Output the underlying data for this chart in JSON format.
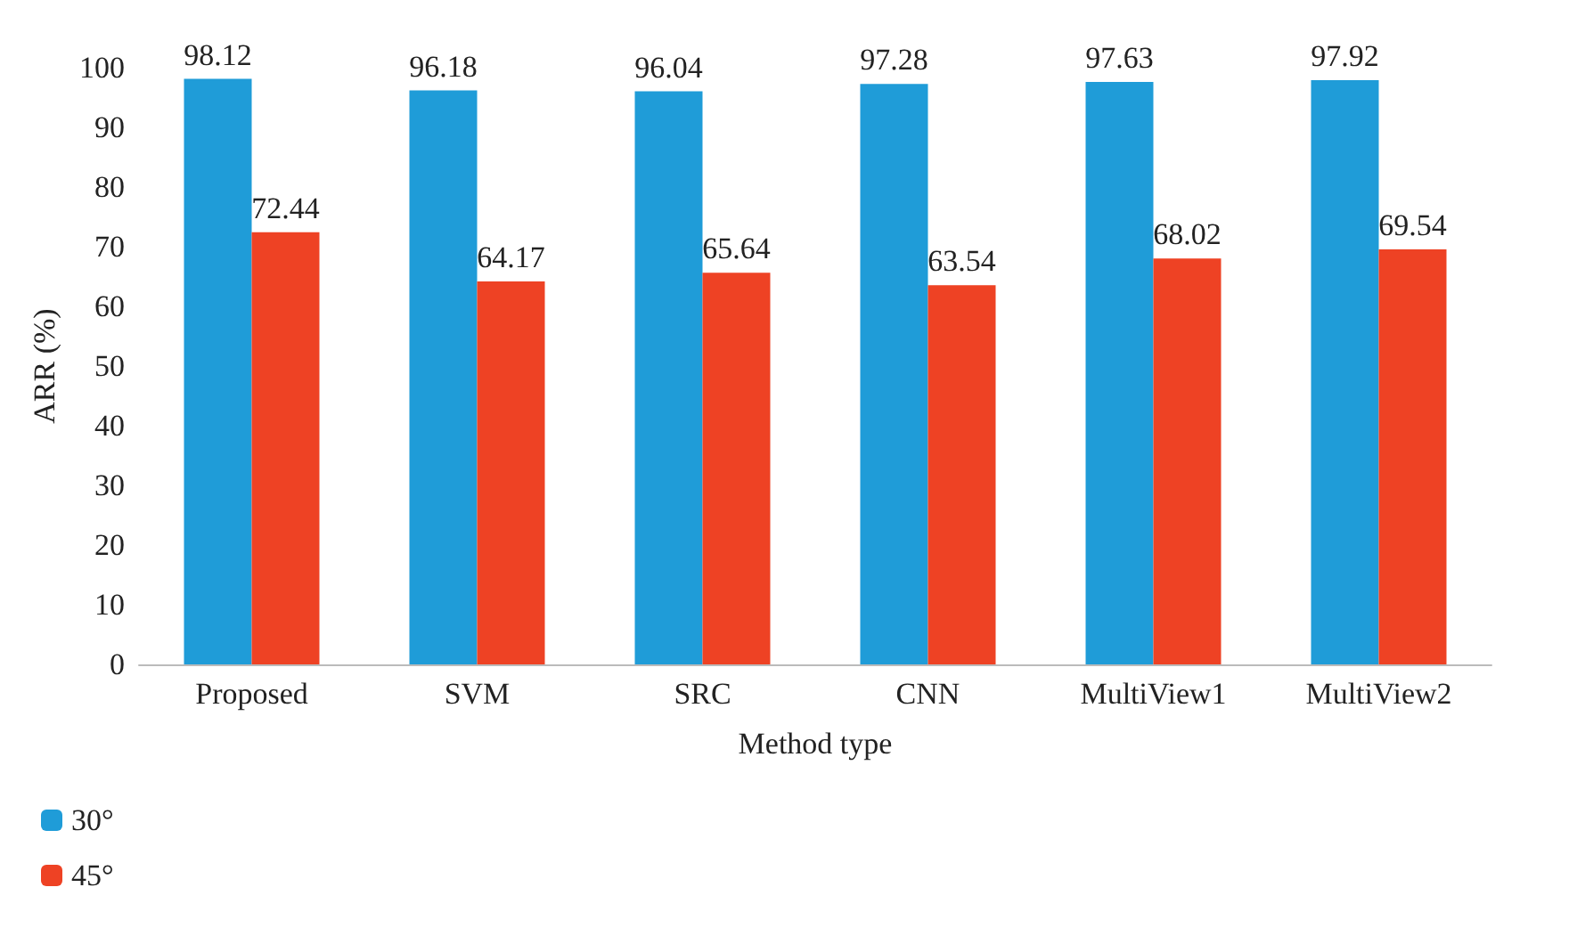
{
  "chart_data": {
    "type": "bar",
    "xlabel": "Method type",
    "ylabel": "ARR (%)",
    "categories": [
      "Proposed",
      "SVM",
      "SRC",
      "CNN",
      "MultiView1",
      "MultiView2"
    ],
    "series": [
      {
        "name": "30°",
        "color": "#1f9cd8",
        "values": [
          98.12,
          96.18,
          96.04,
          97.28,
          97.63,
          97.92
        ]
      },
      {
        "name": "45°",
        "color": "#ee4224",
        "values": [
          72.44,
          64.17,
          65.64,
          63.54,
          68.02,
          69.54
        ]
      }
    ],
    "ylim": [
      0,
      100
    ],
    "yticks": [
      0,
      10,
      20,
      30,
      40,
      50,
      60,
      70,
      80,
      90,
      100
    ],
    "data_labels": true,
    "legend": "bottom left"
  }
}
